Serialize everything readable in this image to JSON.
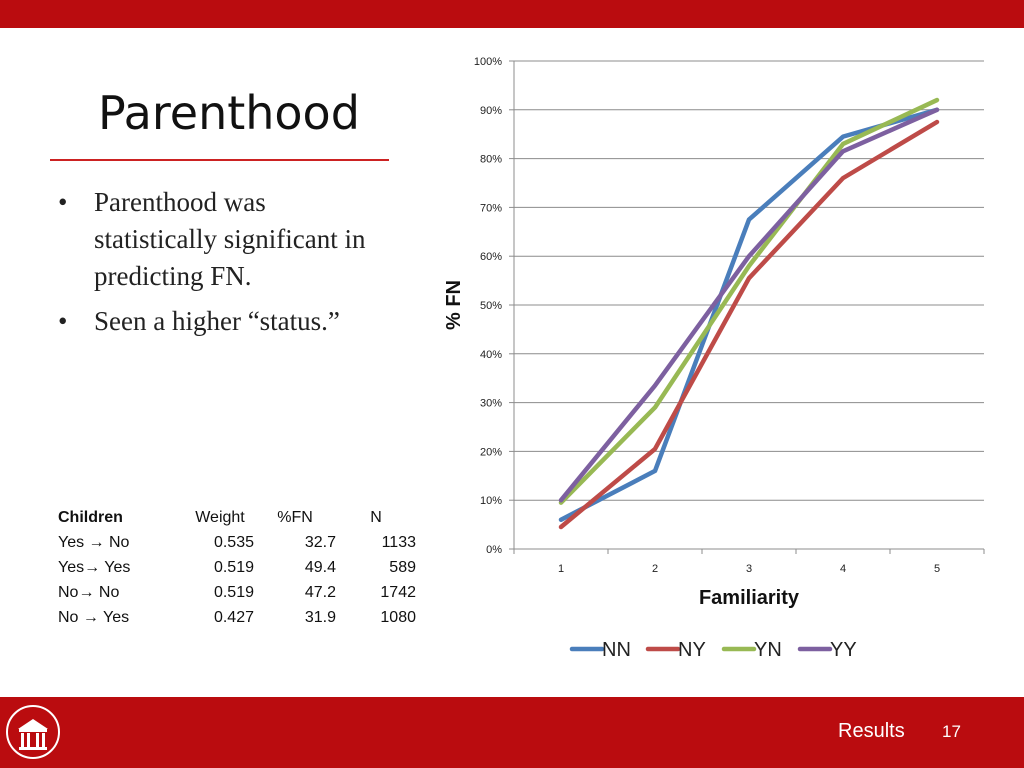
{
  "slide": {
    "title": "Parenthood",
    "bullets": [
      "Parenthood was statistically significant in predicting FN.",
      "Seen a higher “status.”"
    ],
    "bullet_glyph": "•"
  },
  "table": {
    "headers": [
      "Children",
      "Weight",
      "%FN",
      "N"
    ],
    "rows": [
      [
        "Yes → No",
        "0.535",
        "32.7",
        "1133"
      ],
      [
        "Yes→ Yes",
        "0.519",
        "49.4",
        "589"
      ],
      [
        "No→ No",
        "0.519",
        "47.2",
        "1742"
      ],
      [
        "No → Yes",
        "0.427",
        "31.9",
        "1080"
      ]
    ]
  },
  "footer": {
    "section": "Results",
    "page": "17",
    "logo_icon": "arch-logo-icon"
  },
  "colors": {
    "brand_red": "#ba0c0f",
    "rule_red": "#cc2222"
  },
  "chart_data": {
    "type": "line",
    "xlabel": "Familiarity",
    "ylabel": "% FN",
    "categories": [
      "1",
      "2",
      "3",
      "4",
      "5"
    ],
    "ylim": [
      0,
      100
    ],
    "yticks": [
      "0%",
      "10%",
      "20%",
      "30%",
      "40%",
      "50%",
      "60%",
      "70%",
      "80%",
      "90%",
      "100%"
    ],
    "grid": true,
    "legend": "bottom",
    "series": [
      {
        "name": "NN",
        "color": "#4a7ebb",
        "values": [
          6,
          16,
          67.5,
          84.5,
          90
        ]
      },
      {
        "name": "NY",
        "color": "#be4b48",
        "values": [
          4.5,
          20.5,
          55.5,
          76,
          87.5
        ]
      },
      {
        "name": "YN",
        "color": "#98b954",
        "values": [
          9.5,
          29,
          58,
          83,
          92
        ]
      },
      {
        "name": "YY",
        "color": "#7d60a0",
        "values": [
          10,
          33.5,
          60,
          81.5,
          90
        ]
      }
    ]
  }
}
